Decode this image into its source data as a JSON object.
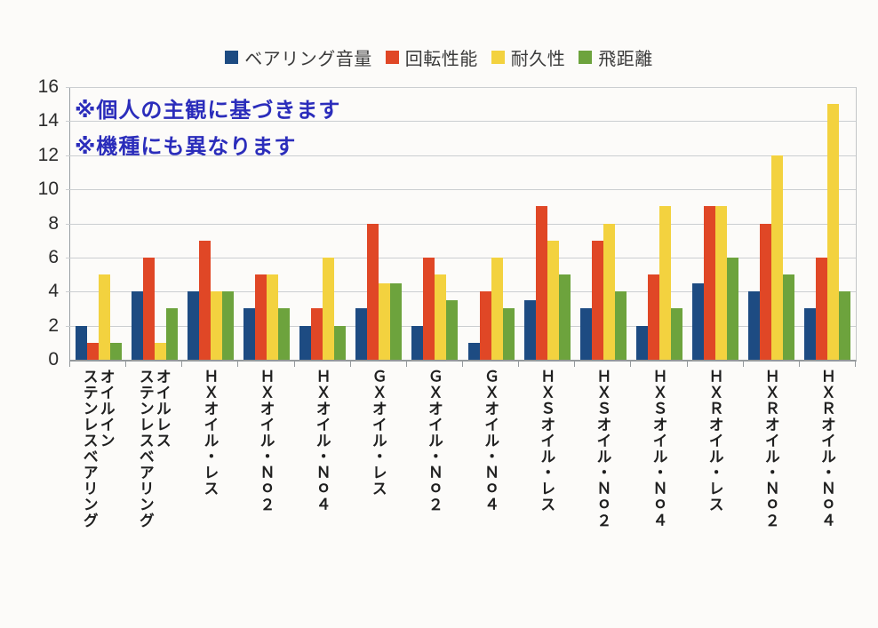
{
  "annotations": {
    "line1": "※個人の主観に基づきます",
    "line2": "※機種にも異なります",
    "color": "#2b2dbb"
  },
  "colors": {
    "background": "#fcfbf9",
    "gridline": "#cbced1",
    "axis": "#95999c"
  },
  "chart_data": {
    "type": "bar",
    "title": "",
    "xlabel": "",
    "ylabel": "",
    "ylim": [
      0,
      16
    ],
    "ytick_step": 2,
    "grid": true,
    "legend_position": "top",
    "categories": [
      "オイルイン\nステンレスベアリング",
      "オイルレス\nステンレスベアリング",
      "ＨＸオイル・レス",
      "ＨＸオイル・Ｎｏ２",
      "ＨＸオイル・Ｎｏ４",
      "ＧＸオイル・レス",
      "ＧＸオイル・Ｎｏ２",
      "ＧＸオイル・Ｎｏ４",
      "ＨＸＳオイル・レス",
      "ＨＸＳオイル・Ｎｏ２",
      "ＨＸＳオイル・Ｎｏ４",
      "ＨＸＲオイル・レス",
      "ＨＸＲオイル・Ｎｏ２",
      "ＨＸＲオイル・Ｎｏ４"
    ],
    "series": [
      {
        "name": "ベアリング音量",
        "color": "#1d4b82",
        "values": [
          2,
          4,
          4,
          3,
          2,
          3,
          2,
          1,
          3.5,
          3,
          2,
          4.5,
          4,
          3
        ]
      },
      {
        "name": "回転性能",
        "color": "#e04726",
        "values": [
          1,
          6,
          7,
          5,
          3,
          8,
          6,
          4,
          9,
          7,
          5,
          9,
          8,
          6
        ]
      },
      {
        "name": "耐久性",
        "color": "#f3d23f",
        "values": [
          5,
          1,
          4,
          5,
          6,
          4.5,
          5,
          6,
          7,
          8,
          9,
          9,
          12,
          15
        ]
      },
      {
        "name": "飛距離",
        "color": "#6da33d",
        "values": [
          1,
          3,
          4,
          3,
          2,
          4.5,
          3.5,
          3,
          5,
          4,
          3,
          6,
          5,
          4
        ]
      }
    ]
  }
}
